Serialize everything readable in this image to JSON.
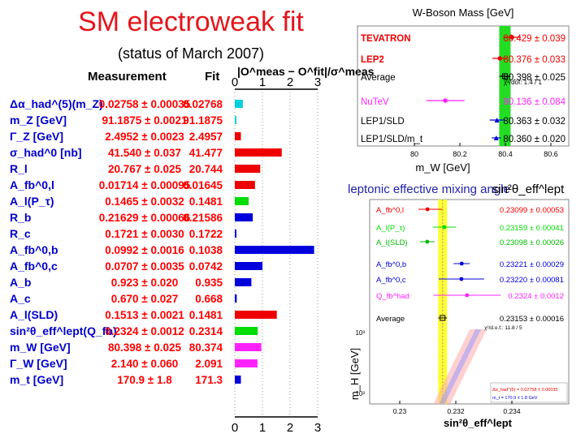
{
  "title": "SM electroweak fit",
  "subtitle": "(status of March 2007)",
  "colors": {
    "title": "#e4161c",
    "cyan": "#00d0e0",
    "red": "#ee0000",
    "green": "#00dd00",
    "blue": "#0000dd",
    "magenta": "#ff22ff",
    "label": "#0000cc",
    "left_value": "#ff0000"
  },
  "chart_data": [
    {
      "type": "bar",
      "title": "Pull table",
      "header": {
        "measurement": "Measurement",
        "fit": "Fit",
        "pull": "|O^meas − O^fit|/σ^meas"
      },
      "xlim": [
        0,
        3
      ],
      "ticks": [
        "0",
        "1",
        "2",
        "3"
      ],
      "rows": [
        {
          "label": "Δα_had^(5)(m_Z)",
          "measurement": "0.02758 ± 0.00035",
          "fit": "0.02768",
          "pull": 0.29,
          "color": "#00d0e0"
        },
        {
          "label": "m_Z [GeV]",
          "measurement": "91.1875 ± 0.0021",
          "fit": "91.1875",
          "pull": 0.0,
          "color": "#00d0e0"
        },
        {
          "label": "Γ_Z [GeV]",
          "measurement": "2.4952 ± 0.0023",
          "fit": "2.4957",
          "pull": 0.22,
          "color": "#ee0000"
        },
        {
          "label": "σ_had^0 [nb]",
          "measurement": "41.540 ± 0.037",
          "fit": "41.477",
          "pull": 1.7,
          "color": "#ee0000"
        },
        {
          "label": "R_l",
          "measurement": "20.767 ± 0.025",
          "fit": "20.744",
          "pull": 0.92,
          "color": "#ee0000"
        },
        {
          "label": "A_fb^0,l",
          "measurement": "0.01714 ± 0.00095",
          "fit": "0.01645",
          "pull": 0.73,
          "color": "#ee0000"
        },
        {
          "label": "A_l(P_τ)",
          "measurement": "0.1465 ± 0.0032",
          "fit": "0.1481",
          "pull": 0.5,
          "color": "#00dd00"
        },
        {
          "label": "R_b",
          "measurement": "0.21629 ± 0.00066",
          "fit": "0.21586",
          "pull": 0.65,
          "color": "#0000dd"
        },
        {
          "label": "R_c",
          "measurement": "0.1721 ± 0.0030",
          "fit": "0.1722",
          "pull": 0.03,
          "color": "#0000dd"
        },
        {
          "label": "A_fb^0,b",
          "measurement": "0.0992 ± 0.0016",
          "fit": "0.1038",
          "pull": 2.87,
          "color": "#0000dd"
        },
        {
          "label": "A_fb^0,c",
          "measurement": "0.0707 ± 0.0035",
          "fit": "0.0742",
          "pull": 1.0,
          "color": "#0000dd"
        },
        {
          "label": "A_b",
          "measurement": "0.923 ± 0.020",
          "fit": "0.935",
          "pull": 0.6,
          "color": "#0000dd"
        },
        {
          "label": "A_c",
          "measurement": "0.670 ± 0.027",
          "fit": "0.668",
          "pull": 0.07,
          "color": "#0000dd"
        },
        {
          "label": "A_l(SLD)",
          "measurement": "0.1513 ± 0.0021",
          "fit": "0.1481",
          "pull": 1.52,
          "color": "#ee0000"
        },
        {
          "label": "sin²θ_eff^lept(Q_fb)",
          "measurement": "0.2324 ± 0.0012",
          "fit": "0.2314",
          "pull": 0.83,
          "color": "#00dd00"
        },
        {
          "label": "m_W [GeV]",
          "measurement": "80.398 ± 0.025",
          "fit": "80.374",
          "pull": 0.96,
          "color": "#ff22ff"
        },
        {
          "label": "Γ_W [GeV]",
          "measurement": "2.140 ± 0.060",
          "fit": "2.091",
          "pull": 0.82,
          "color": "#ff22ff"
        },
        {
          "label": "m_t [GeV]",
          "measurement": "170.9 ± 1.8",
          "fit": "171.3",
          "pull": 0.22,
          "color": "#0000dd"
        }
      ]
    },
    {
      "type": "scatter",
      "title": "W-Boson Mass [GeV]",
      "xlabel": "m_W [GeV]",
      "xlim": [
        80.0,
        80.6
      ],
      "ticks": [
        "80",
        "80.2",
        "80.4",
        "80.6"
      ],
      "band": [
        80.373,
        80.423
      ],
      "points": [
        {
          "label": "TEVATRON",
          "value": 80.429,
          "error": 0.039,
          "text": "80.429 ± 0.039",
          "color": "#ee0000"
        },
        {
          "label": "LEP2",
          "value": 80.376,
          "error": 0.033,
          "text": "80.376 ± 0.033",
          "color": "#ee0000"
        },
        {
          "label": "Average",
          "value": 80.398,
          "error": 0.025,
          "text": "80.398 ± 0.025",
          "color": "#000000"
        },
        {
          "label": "NuTeV",
          "value": 80.136,
          "error": 0.084,
          "text": "80.136 ± 0.084",
          "color": "#ff22ff"
        },
        {
          "label": "LEP1/SLD",
          "value": 80.363,
          "error": 0.032,
          "text": "80.363 ± 0.032",
          "color": "#0000dd"
        },
        {
          "label": "LEP1/SLD/m_t",
          "value": 80.36,
          "error": 0.02,
          "text": "80.360 ± 0.020",
          "color": "#0000dd"
        }
      ],
      "chi2_note": "χ²/dof: 1.4 / 1"
    },
    {
      "type": "scatter",
      "title": "leptonic effective mixing angle",
      "formula": "sin²θ_eff^lept",
      "xlabel": "sin²θ_eff^lept",
      "ylabel": "m_H [GeV]",
      "xlim": [
        0.23,
        0.234
      ],
      "ticks": [
        "0.23",
        "0.232",
        "0.234"
      ],
      "y_ticks": [
        "10³",
        "10²"
      ],
      "band": [
        0.23137,
        0.23169
      ],
      "points": [
        {
          "label": "A_fb^0,l",
          "value": 0.23099,
          "error": 0.00053,
          "text": "0.23099 ± 0.00053",
          "color": "#ee0000"
        },
        {
          "label": "A_l(P_τ)",
          "value": 0.23159,
          "error": 0.00041,
          "text": "0.23159 ± 0.00041",
          "color": "#00dd00"
        },
        {
          "label": "A_l(SLD)",
          "value": 0.23098,
          "error": 0.00026,
          "text": "0.23098 ± 0.00026",
          "color": "#00bb00"
        },
        {
          "label": "A_fb^0,b",
          "value": 0.23221,
          "error": 0.00029,
          "text": "0.23221 ± 0.00029",
          "color": "#0000dd"
        },
        {
          "label": "A_fb^0,c",
          "value": 0.2322,
          "error": 0.00081,
          "text": "0.23220 ± 0.00081",
          "color": "#0000dd"
        },
        {
          "label": "Q_fb^had",
          "value": 0.2324,
          "error": 0.0012,
          "text": "0.2324 ± 0.0012",
          "color": "#ff22ff"
        },
        {
          "label": "Average",
          "value": 0.23153,
          "error": 0.00016,
          "text": "0.23153 ± 0.00016",
          "color": "#000000"
        }
      ],
      "chi2_note": "χ²/d.o.f.: 11.8 / 5",
      "legend": [
        "Δα_had^(5) = 0.02758 ± 0.00035",
        "m_t = 170.9 ± 1.8 GeV"
      ]
    }
  ]
}
